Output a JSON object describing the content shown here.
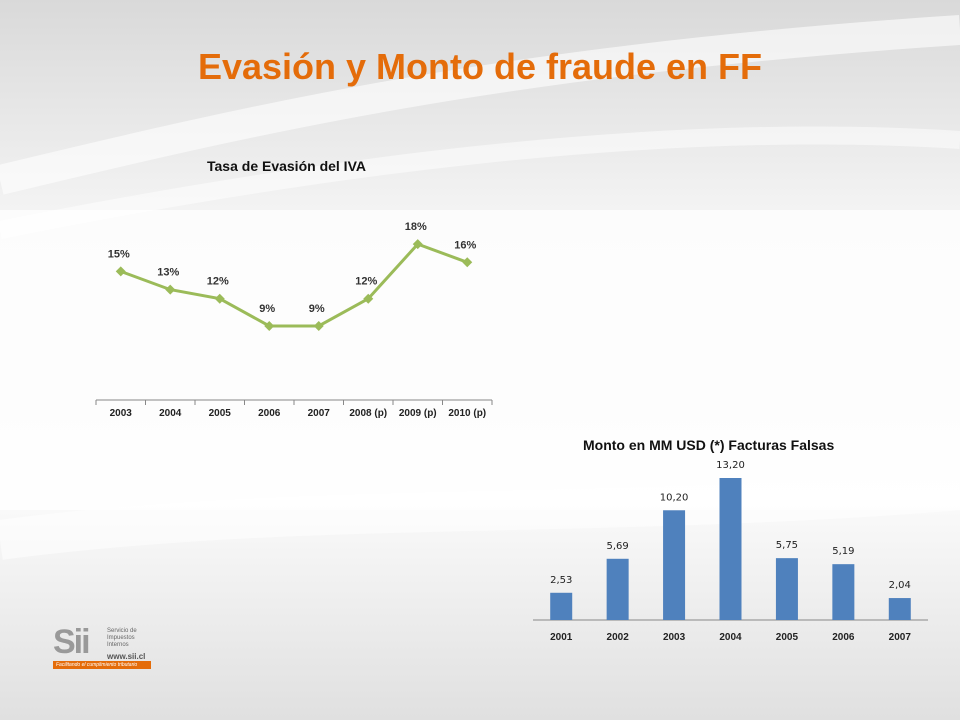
{
  "page": {
    "title": "Evasión y Monto de fraude en FF",
    "title_color": "#e46c0a",
    "logo": {
      "text": "Sii",
      "sub": "Servicio de Impuestos Internos",
      "url": "www.sii.cl",
      "tagline": "Facilitando el cumplimiento tributario"
    }
  },
  "chart_data": [
    {
      "type": "line",
      "title": "Tasa de Evasión del IVA",
      "categories": [
        "2003",
        "2004",
        "2005",
        "2006",
        "2007",
        "2008 (p)",
        "2009 (p)",
        "2010 (p)"
      ],
      "values": [
        15,
        13,
        12,
        9,
        9,
        12,
        18,
        16
      ],
      "data_labels": [
        "15%",
        "13%",
        "12%",
        "9%",
        "9%",
        "12%",
        "18%",
        "16%"
      ],
      "unit": "%",
      "color": "#9bbb59",
      "grid": false,
      "legend": "none"
    },
    {
      "type": "bar",
      "title": "Monto en MM USD (*) Facturas Falsas",
      "categories": [
        "2001",
        "2002",
        "2003",
        "2004",
        "2005",
        "2006",
        "2007"
      ],
      "values": [
        2.53,
        5.69,
        10.2,
        13.2,
        5.75,
        5.19,
        2.04
      ],
      "data_labels": [
        "2,53",
        "5,69",
        "10,20",
        "13,20",
        "5,75",
        "5,19",
        "2,04"
      ],
      "color": "#4f81bd",
      "grid": false,
      "legend": "none"
    }
  ]
}
